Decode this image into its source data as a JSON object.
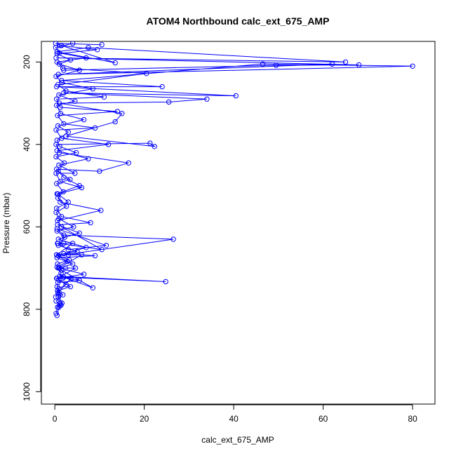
{
  "chart_data": {
    "type": "line",
    "title": "ATOM4 Northbound calc_ext_675_AMP",
    "xlabel": "calc_ext_675_AMP",
    "ylabel": "Pressure (mbar)",
    "xlim": [
      -3,
      85
    ],
    "ylim": [
      1030,
      150
    ],
    "y_reversed": true,
    "xticks": [
      0,
      20,
      40,
      60,
      80
    ],
    "yticks": [
      200,
      400,
      600,
      800,
      1000
    ],
    "grid": false,
    "legend": "none",
    "marker": "open-circle",
    "color": "#0000ff",
    "series": [
      {
        "points": [
          [
            0.3,
            810
          ],
          [
            0.6,
            795
          ],
          [
            1.2,
            785
          ],
          [
            0.8,
            770
          ],
          [
            1.0,
            760
          ],
          [
            0.5,
            745
          ],
          [
            0.7,
            735
          ],
          [
            5.5,
            730
          ],
          [
            1.1,
            720
          ],
          [
            24.8,
            733
          ],
          [
            2.0,
            722
          ],
          [
            8.5,
            748
          ],
          [
            1.5,
            705
          ],
          [
            0.6,
            690
          ],
          [
            3.2,
            680
          ],
          [
            0.8,
            670
          ],
          [
            26.5,
            630
          ],
          [
            2.0,
            620
          ],
          [
            0.5,
            605
          ],
          [
            11.5,
            645
          ],
          [
            3.0,
            655
          ],
          [
            0.7,
            640
          ],
          [
            10.5,
            655
          ],
          [
            1.5,
            600
          ],
          [
            0.6,
            585
          ],
          [
            10.3,
            560
          ],
          [
            1.2,
            540
          ],
          [
            0.5,
            520
          ],
          [
            5.5,
            500
          ],
          [
            2.0,
            480
          ],
          [
            0.4,
            460
          ],
          [
            10.0,
            465
          ],
          [
            16.5,
            445
          ],
          [
            1.0,
            420
          ],
          [
            0.3,
            400
          ],
          [
            21.3,
            397
          ],
          [
            22.3,
            405
          ],
          [
            2.5,
            380
          ],
          [
            13.5,
            345
          ],
          [
            15.0,
            325
          ],
          [
            1.0,
            300
          ],
          [
            25.5,
            297
          ],
          [
            34.0,
            290
          ],
          [
            2.0,
            275
          ],
          [
            40.5,
            282
          ],
          [
            0.4,
            260
          ],
          [
            24.0,
            260
          ],
          [
            1.5,
            245
          ],
          [
            46.5,
            205
          ],
          [
            80.0,
            210
          ],
          [
            0.8,
            230
          ],
          [
            62.0,
            205
          ],
          [
            2.0,
            220
          ],
          [
            49.5,
            208
          ],
          [
            68.0,
            207
          ],
          [
            0.3,
            190
          ],
          [
            65.0,
            200
          ],
          [
            7.5,
            165
          ],
          [
            0.5,
            175
          ],
          [
            13.5,
            202
          ],
          [
            1.5,
            160
          ],
          [
            0.2,
            155
          ],
          [
            10.5,
            158
          ]
        ]
      },
      {
        "points": [
          [
            0.2,
            770
          ],
          [
            0.9,
            750
          ],
          [
            2.5,
            740
          ],
          [
            0.4,
            725
          ],
          [
            6.5,
            715
          ],
          [
            1.0,
            700
          ],
          [
            4.0,
            690
          ],
          [
            0.5,
            675
          ],
          [
            9.0,
            670
          ],
          [
            2.0,
            665
          ],
          [
            7.0,
            650
          ],
          [
            0.8,
            630
          ],
          [
            5.5,
            615
          ],
          [
            0.6,
            595
          ],
          [
            8.0,
            590
          ],
          [
            1.5,
            575
          ],
          [
            0.4,
            555
          ],
          [
            3.0,
            540
          ],
          [
            0.7,
            520
          ],
          [
            6.0,
            505
          ],
          [
            1.2,
            490
          ],
          [
            0.3,
            470
          ],
          [
            4.5,
            470
          ],
          [
            0.9,
            450
          ],
          [
            7.5,
            435
          ],
          [
            0.5,
            415
          ],
          [
            12.0,
            400
          ],
          [
            1.5,
            385
          ],
          [
            0.3,
            365
          ],
          [
            9.0,
            360
          ],
          [
            2.0,
            350
          ],
          [
            0.6,
            330
          ],
          [
            14.0,
            320
          ],
          [
            1.2,
            310
          ],
          [
            0.4,
            290
          ],
          [
            11.0,
            285
          ],
          [
            2.5,
            270
          ],
          [
            0.7,
            255
          ],
          [
            20.5,
            228
          ],
          [
            1.8,
            215
          ],
          [
            0.5,
            200
          ],
          [
            7.0,
            190
          ],
          [
            1.0,
            178
          ],
          [
            0.2,
            165
          ],
          [
            4.0,
            155
          ]
        ]
      },
      {
        "points": [
          [
            0.5,
            815
          ],
          [
            1.1,
            790
          ],
          [
            0.3,
            780
          ],
          [
            1.8,
            765
          ],
          [
            0.6,
            755
          ],
          [
            3.5,
            745
          ],
          [
            0.9,
            728
          ],
          [
            1.4,
            712
          ],
          [
            0.5,
            698
          ],
          [
            2.8,
            684
          ],
          [
            0.4,
            668
          ],
          [
            5.0,
            660
          ],
          [
            0.8,
            645
          ],
          [
            2.2,
            625
          ],
          [
            0.5,
            610
          ],
          [
            4.2,
            600
          ],
          [
            0.9,
            580
          ],
          [
            0.3,
            565
          ],
          [
            2.6,
            550
          ],
          [
            0.7,
            530
          ],
          [
            1.9,
            515
          ],
          [
            0.4,
            495
          ],
          [
            3.4,
            485
          ],
          [
            0.8,
            465
          ],
          [
            2.1,
            445
          ],
          [
            0.3,
            430
          ],
          [
            4.8,
            420
          ],
          [
            1.1,
            405
          ],
          [
            0.5,
            390
          ],
          [
            3.0,
            370
          ],
          [
            0.7,
            355
          ],
          [
            6.5,
            340
          ],
          [
            1.3,
            325
          ],
          [
            0.4,
            305
          ],
          [
            4.5,
            295
          ],
          [
            0.9,
            280
          ],
          [
            8.5,
            265
          ],
          [
            1.6,
            250
          ],
          [
            0.3,
            235
          ],
          [
            5.5,
            220
          ],
          [
            1.0,
            205
          ],
          [
            3.5,
            195
          ],
          [
            0.5,
            180
          ],
          [
            9.5,
            170
          ],
          [
            1.2,
            160
          ]
        ]
      },
      {
        "points": [
          [
            0.6,
            640
          ],
          [
            2.0,
            640
          ],
          [
            4.0,
            640
          ],
          [
            0.4,
            668
          ],
          [
            3.0,
            668
          ],
          [
            6.0,
            668
          ],
          [
            0.8,
            700
          ],
          [
            2.4,
            700
          ],
          [
            4.6,
            700
          ],
          [
            0.5,
            725
          ],
          [
            1.8,
            725
          ],
          [
            3.6,
            725
          ],
          [
            0.7,
            760
          ],
          [
            1.6,
            785
          ],
          [
            0.9,
            795
          ],
          [
            1.4,
            790
          ]
        ]
      }
    ]
  }
}
